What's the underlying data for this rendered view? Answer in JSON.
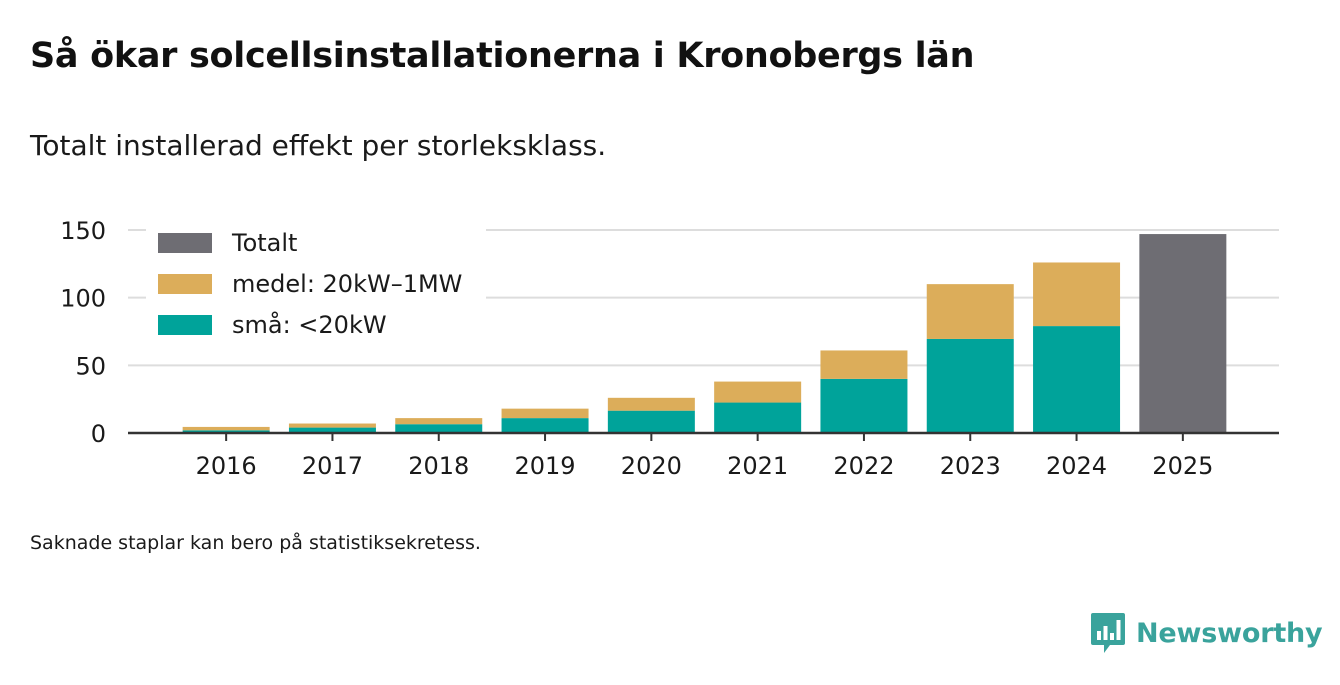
{
  "title": "Så ökar solcellsinstallationerna i Kronobergs län",
  "subtitle": "Totalt installerad effekt per storleksklass.",
  "footnote": "Saknade staplar kan bero på statistiksekretess.",
  "brand": {
    "name": "Newsworthy",
    "icon": "newsworthy-logo-icon",
    "color": "#3aa39c"
  },
  "colors": {
    "sma": "#00a39a",
    "medel": "#dcad5a",
    "totalt": "#6e6d73",
    "grid": "#dddddd",
    "axis": "#333333"
  },
  "chart_data": {
    "type": "bar",
    "stacked": true,
    "title": "Så ökar solcellsinstallationerna i Kronobergs län",
    "subtitle": "Totalt installerad effekt per storleksklass.",
    "xlabel": "",
    "ylabel": "",
    "ylim": [
      0,
      150
    ],
    "yticks": [
      0,
      50,
      100,
      150
    ],
    "grid": true,
    "legend_position": "top-left",
    "categories": [
      "2016",
      "2017",
      "2018",
      "2019",
      "2020",
      "2021",
      "2022",
      "2023",
      "2024",
      "2025"
    ],
    "series": [
      {
        "name": "små: <20kW",
        "key": "sma",
        "values": [
          2,
          4,
          6.5,
          11,
          16.5,
          22.5,
          40,
          69.5,
          79,
          null
        ]
      },
      {
        "name": "medel: 20kW–1MW",
        "key": "medel",
        "values": [
          2.5,
          3,
          4.5,
          7,
          9.5,
          15.5,
          21,
          40.5,
          47,
          null
        ]
      },
      {
        "name": "Totalt",
        "key": "totalt",
        "values": [
          null,
          null,
          null,
          null,
          null,
          null,
          null,
          null,
          null,
          147
        ]
      }
    ],
    "legend": [
      {
        "label": "Totalt",
        "key": "totalt"
      },
      {
        "label": "medel: 20kW–1MW",
        "key": "medel"
      },
      {
        "label": "små: <20kW",
        "key": "sma"
      }
    ]
  }
}
